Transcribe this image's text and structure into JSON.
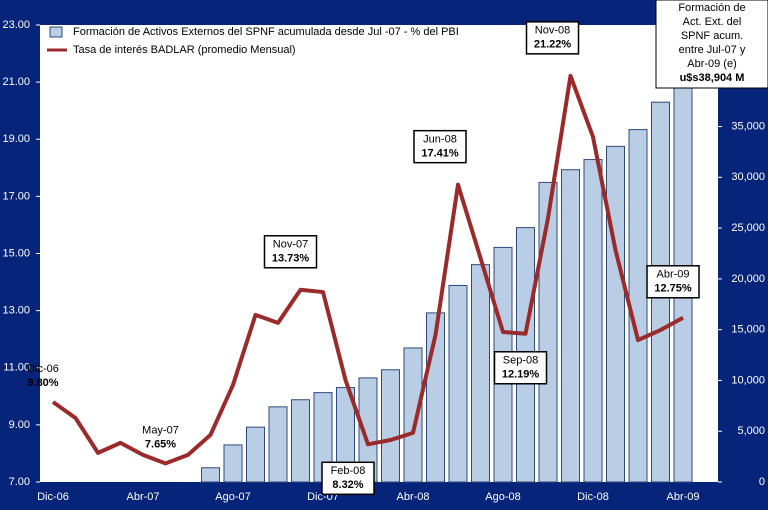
{
  "chart_data": {
    "type": "bar-line",
    "categories": [
      "Dic-06",
      null,
      null,
      null,
      "Abr-07",
      null,
      null,
      null,
      "Ago-07",
      null,
      null,
      null,
      "Dic-07",
      null,
      null,
      null,
      "Abr-08",
      null,
      null,
      null,
      "Ago-08",
      null,
      null,
      null,
      "Dic-08",
      null,
      null,
      null,
      "Abr-09"
    ],
    "ylim": [
      7,
      23
    ],
    "yticks": [
      {
        "value": 7,
        "label": "7.00"
      },
      {
        "value": 9,
        "label": "9.00"
      },
      {
        "value": 11,
        "label": "11.00"
      },
      {
        "value": 13,
        "label": "13.00"
      },
      {
        "value": 15,
        "label": "15.00"
      },
      {
        "value": 17,
        "label": "17.00"
      },
      {
        "value": 19,
        "label": "19.00"
      },
      {
        "value": 21,
        "label": "21.00"
      },
      {
        "value": 23,
        "label": "23.00"
      }
    ],
    "y2lim": [
      0,
      45000
    ],
    "y2ticks": [
      0,
      {
        "value": 5000,
        "label": "5,000"
      },
      {
        "value": 10000,
        "label": "10,000"
      },
      {
        "value": 15000,
        "label": "15,000"
      },
      {
        "value": 20000,
        "label": "20,000"
      },
      {
        "value": 25000,
        "label": "25,000"
      },
      {
        "value": 30000,
        "label": "30,000"
      },
      {
        "value": 35000,
        "label": "35,000"
      }
    ],
    "series": [
      {
        "name": "Formación de Activos Externos del SPNF acumulada desde Jul  -07 - % del PBI",
        "type": "bar",
        "axis": "y2",
        "color": "#b9cde5",
        "values": [
          null,
          null,
          null,
          null,
          null,
          null,
          null,
          1400,
          3650,
          5400,
          7400,
          8100,
          8800,
          9300,
          10250,
          11050,
          13200,
          16650,
          19350,
          21400,
          23100,
          25050,
          29500,
          30750,
          31750,
          33050,
          34700,
          37400,
          38904
        ]
      },
      {
        "name": "Tasa de interés BADLAR (promedio Mensual)",
        "type": "line",
        "color": "#9b2a2a",
        "values": [
          9.8,
          9.24,
          8.02,
          8.37,
          7.95,
          7.65,
          7.95,
          8.65,
          10.4,
          12.85,
          12.57,
          13.73,
          13.65,
          10.57,
          8.32,
          8.47,
          8.72,
          12.15,
          17.41,
          14.84,
          12.25,
          12.19,
          16.24,
          21.22,
          19.08,
          15.12,
          11.97,
          12.32,
          12.75
        ],
        "value_labels": [
          "9.80%",
          null,
          null,
          null,
          null,
          "7.65%",
          null,
          null,
          null,
          null,
          null,
          "13.73%",
          null,
          null,
          "8.32%",
          null,
          null,
          null,
          "17.41%",
          null,
          null,
          "12.19%",
          null,
          "21.22%",
          null,
          null,
          null,
          null,
          "12.75%"
        ],
        "point_labels": [
          "Dic-06",
          "May-07",
          "Nov-07",
          "Feb-08",
          "Jun-08",
          "Sep-08",
          "Nov-08",
          "Abr-09"
        ],
        "label_boxes": [
          false,
          false,
          true,
          true,
          true,
          true,
          true,
          true
        ]
      }
    ],
    "annotation": {
      "lines": [
        "Formación de",
        "Act. Ext. del",
        "SPNF acum.",
        "entre Jul-07 y",
        "Abr-09 (e)"
      ],
      "total": "u$s38,904 M"
    }
  }
}
